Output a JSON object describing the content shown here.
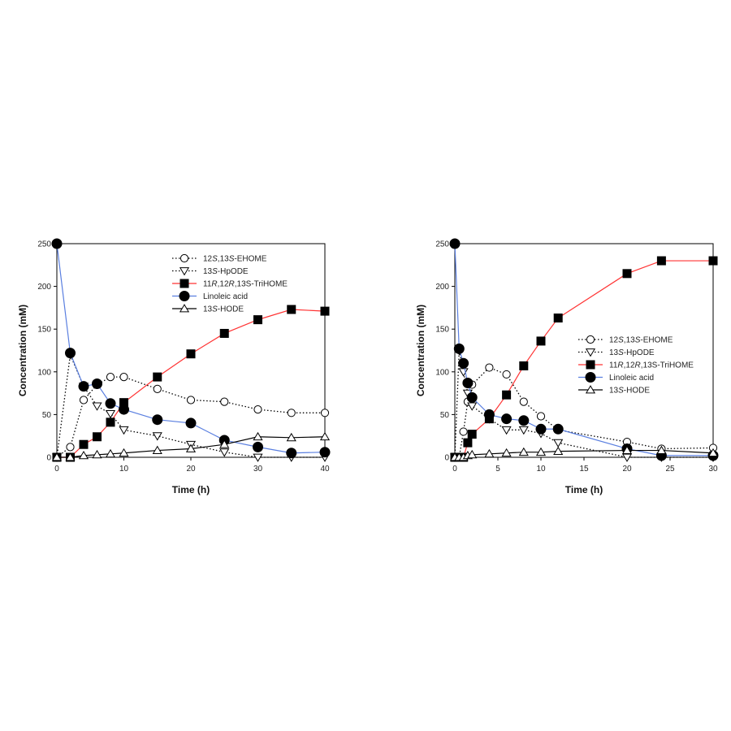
{
  "chart_data": [
    {
      "type": "line",
      "xlabel": "Time (h)",
      "ylabel": "Concentration (mM)",
      "xlim": [
        0,
        40
      ],
      "ylim": [
        0,
        250
      ],
      "xticks": [
        0,
        10,
        20,
        30,
        40
      ],
      "yticks": [
        0,
        50,
        100,
        150,
        200,
        250
      ],
      "grid": false,
      "legend_position": "top-right",
      "series": [
        {
          "name": "12S,13S-EHOME",
          "legend_plain": "12",
          "legend_italic": "S",
          "legend_rest": ",13",
          "legend_italic2": "S",
          "legend_tail": "-EHOME",
          "marker": "circle-open",
          "line": "dotted",
          "color": "#000000",
          "x": [
            0,
            2,
            4,
            6,
            8,
            10,
            15,
            20,
            25,
            30,
            35,
            40
          ],
          "y": [
            0,
            12,
            67,
            85,
            94,
            94,
            80,
            67,
            65,
            56,
            52,
            52
          ]
        },
        {
          "name": "13S-HpODE",
          "legend_plain": "13",
          "legend_italic": "S",
          "legend_rest": "-HpODE",
          "legend_italic2": "",
          "legend_tail": "",
          "marker": "triangle-down-open",
          "line": "dotted",
          "color": "#000000",
          "x": [
            0,
            2,
            4,
            6,
            8,
            10,
            15,
            20,
            25,
            30,
            35,
            40
          ],
          "y": [
            0,
            120,
            83,
            60,
            51,
            32,
            25,
            15,
            6,
            0,
            0,
            0
          ]
        },
        {
          "name": "11R,12R,13S-TriHOME",
          "legend_plain": "11",
          "legend_italic": "R",
          "legend_rest": ",12",
          "legend_italic2": "R",
          "legend_tail": ",13S-TriHOME",
          "marker": "square-filled",
          "line": "solid",
          "color": "#ff3333",
          "x": [
            0,
            2,
            4,
            6,
            8,
            10,
            15,
            20,
            25,
            30,
            35,
            40
          ],
          "y": [
            0,
            0,
            15,
            24,
            41,
            64,
            94,
            121,
            145,
            161,
            173,
            171
          ]
        },
        {
          "name": "Linoleic acid",
          "legend_plain": "Linoleic acid",
          "legend_italic": "",
          "legend_rest": "",
          "legend_italic2": "",
          "legend_tail": "",
          "marker": "circle-filled",
          "line": "solid",
          "color": "#5a7fe0",
          "x": [
            0,
            2,
            4,
            6,
            8,
            10,
            15,
            20,
            25,
            30,
            35,
            40
          ],
          "y": [
            250,
            122,
            83,
            86,
            63,
            56,
            44,
            40,
            20,
            12,
            5,
            6
          ]
        },
        {
          "name": "13S-HODE",
          "legend_plain": "13",
          "legend_italic": "S",
          "legend_rest": "-HODE",
          "legend_italic2": "",
          "legend_tail": "",
          "marker": "triangle-up-open",
          "line": "solid",
          "color": "#000000",
          "x": [
            0,
            2,
            4,
            6,
            8,
            10,
            15,
            20,
            25,
            30,
            35,
            40
          ],
          "y": [
            0,
            0,
            2,
            3,
            4,
            5,
            8,
            10,
            15,
            24,
            23,
            24
          ]
        }
      ]
    },
    {
      "type": "line",
      "xlabel": "Time (h)",
      "ylabel": "Concentration (mM)",
      "xlim": [
        0,
        30
      ],
      "ylim": [
        0,
        250
      ],
      "xticks": [
        0,
        5,
        10,
        15,
        20,
        25,
        30
      ],
      "yticks": [
        0,
        50,
        100,
        150,
        200,
        250
      ],
      "grid": false,
      "legend_position": "center-right",
      "series": [
        {
          "name": "12S,13S-EHOME",
          "legend_plain": "12",
          "legend_italic": "S",
          "legend_rest": ",13",
          "legend_italic2": "S",
          "legend_tail": "-EHOME",
          "marker": "circle-open",
          "line": "dotted",
          "color": "#000000",
          "x": [
            0,
            0.5,
            1,
            1.5,
            2,
            4,
            6,
            8,
            10,
            12,
            20,
            24,
            30
          ],
          "y": [
            0,
            0,
            30,
            65,
            85,
            105,
            97,
            65,
            48,
            32,
            18,
            10,
            11
          ]
        },
        {
          "name": "13S-HpODE",
          "legend_plain": "13",
          "legend_italic": "S",
          "legend_rest": "-HpODE",
          "legend_italic2": "",
          "legend_tail": "",
          "marker": "triangle-down-open",
          "line": "dotted",
          "color": "#000000",
          "x": [
            0,
            0.5,
            1,
            1.5,
            2,
            4,
            6,
            8,
            10,
            12,
            20,
            24,
            30
          ],
          "y": [
            0,
            125,
            100,
            75,
            60,
            45,
            32,
            32,
            28,
            17,
            0,
            0,
            0
          ]
        },
        {
          "name": "11R,12R,13S-TriHOME",
          "legend_plain": "11",
          "legend_italic": "R",
          "legend_rest": ",12",
          "legend_italic2": "R",
          "legend_tail": ",13S-TriHOME",
          "marker": "square-filled",
          "line": "solid",
          "color": "#ff3333",
          "x": [
            0,
            0.5,
            1,
            1.5,
            2,
            4,
            6,
            8,
            10,
            12,
            20,
            24,
            30
          ],
          "y": [
            0,
            0,
            0,
            17,
            27,
            45,
            73,
            107,
            136,
            163,
            215,
            230,
            230
          ]
        },
        {
          "name": "Linoleic acid",
          "legend_plain": "Linoleic acid",
          "legend_italic": "",
          "legend_rest": "",
          "legend_italic2": "",
          "legend_tail": "",
          "marker": "circle-filled",
          "line": "solid",
          "color": "#5a7fe0",
          "x": [
            0,
            0.5,
            1,
            1.5,
            2,
            4,
            6,
            8,
            10,
            12,
            20,
            24,
            30
          ],
          "y": [
            250,
            127,
            110,
            87,
            70,
            50,
            45,
            43,
            33,
            33,
            10,
            2,
            2
          ]
        },
        {
          "name": "13S-HODE",
          "legend_plain": "13",
          "legend_italic": "S",
          "legend_rest": "-HODE",
          "legend_italic2": "",
          "legend_tail": "",
          "marker": "triangle-up-open",
          "line": "solid",
          "color": "#000000",
          "x": [
            0,
            0.5,
            1,
            1.5,
            2,
            4,
            6,
            8,
            10,
            12,
            20,
            24,
            30
          ],
          "y": [
            0,
            0,
            0,
            2,
            3,
            4,
            5,
            6,
            6,
            7,
            8,
            8,
            5
          ]
        }
      ]
    }
  ]
}
